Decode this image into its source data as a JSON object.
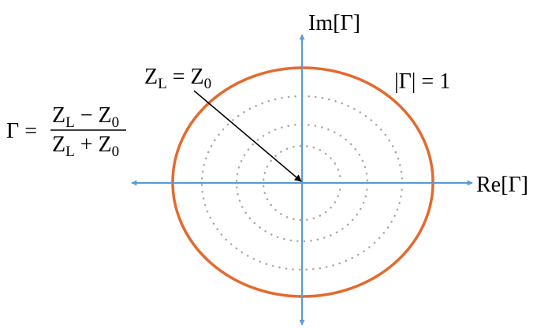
{
  "diagram": {
    "axes": {
      "imag": {
        "main": "Im[",
        "symbol": "Γ",
        "close": "]"
      },
      "real": {
        "main": "Re[",
        "symbol": "Γ",
        "close": "]"
      }
    },
    "unit_circle_label": {
      "text": "|Γ| = 1"
    },
    "match_label": {
      "z": "Z",
      "sub_l": "L",
      "equals": " = ",
      "z2": "Z",
      "sub_0": "0"
    },
    "formula": {
      "lhs": "Γ =",
      "num": {
        "z1": "Z",
        "s1": "L",
        "op": " − ",
        "z2": "Z",
        "s2": "0"
      },
      "den": {
        "z1": "Z",
        "s1": "L",
        "op": " + ",
        "z2": "Z",
        "s2": "0"
      }
    },
    "colors": {
      "axis": "#5b9bd5",
      "unit_circle": "#e46a2e",
      "dotted_circles": "#a6a6a6",
      "arrow": "#000000",
      "text": "#000000"
    }
  }
}
